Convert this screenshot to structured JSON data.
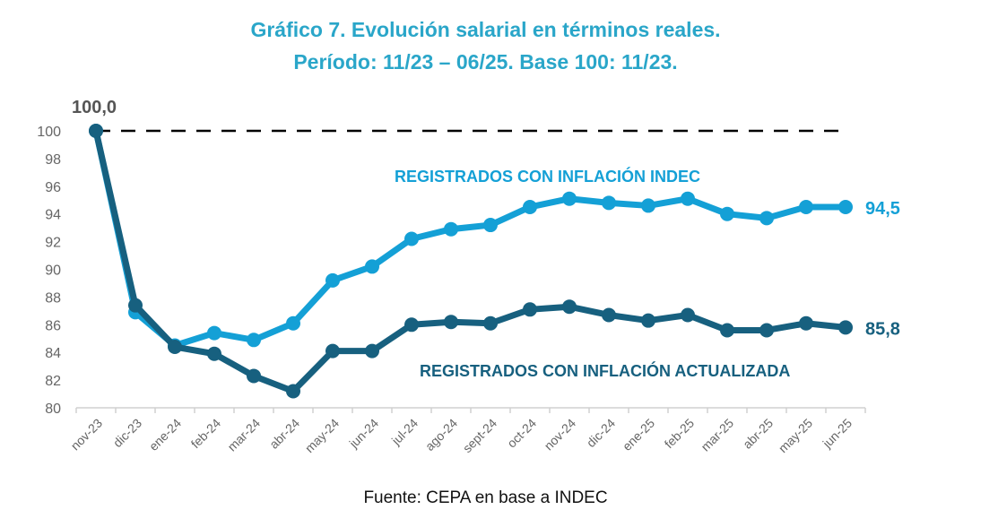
{
  "colors": {
    "light": "#14a0d6",
    "dark": "#17607f",
    "title": "#2aa6c9",
    "axis_text": "#666666",
    "baseline": "#000000"
  },
  "chart_data": {
    "type": "line",
    "title": "Gráfico 7. Evolución salarial en términos reales.",
    "subtitle": "Período: 11/23 – 06/25. Base 100: 11/23.",
    "source": "Fuente: CEPA en base a INDEC",
    "xlabel": "",
    "ylabel": "",
    "ylim": [
      80,
      100
    ],
    "yticks": [
      "80",
      "82",
      "84",
      "86",
      "88",
      "90",
      "92",
      "94",
      "96",
      "98",
      "100"
    ],
    "categories": [
      "nov-23",
      "dic-23",
      "ene-24",
      "feb-24",
      "mar-24",
      "abr-24",
      "may-24",
      "jun-24",
      "jul-24",
      "ago-24",
      "sept-24",
      "oct-24",
      "nov-24",
      "dic-24",
      "ene-25",
      "feb-25",
      "mar-25",
      "abr-25",
      "may-25",
      "jun-25"
    ],
    "baseline": {
      "value": 100,
      "label": "100,0",
      "style": "dashed"
    },
    "grid": false,
    "series": [
      {
        "name": "REGISTRADOS CON INFLACIÓN INDEC",
        "end_label": "94,5",
        "color_key": "light",
        "values": [
          100,
          86.9,
          84.5,
          85.4,
          84.9,
          86.1,
          89.2,
          90.2,
          92.2,
          92.9,
          93.2,
          94.5,
          95.1,
          94.8,
          94.6,
          95.1,
          94.0,
          93.7,
          94.5,
          94.5
        ]
      },
      {
        "name": "REGISTRADOS CON INFLACIÓN ACTUALIZADA",
        "end_label": "85,8",
        "color_key": "dark",
        "values": [
          100,
          87.4,
          84.4,
          83.9,
          82.3,
          81.2,
          84.1,
          84.1,
          86.0,
          86.2,
          86.1,
          87.1,
          87.3,
          86.7,
          86.3,
          86.7,
          85.6,
          85.6,
          86.1,
          85.8
        ]
      }
    ]
  }
}
